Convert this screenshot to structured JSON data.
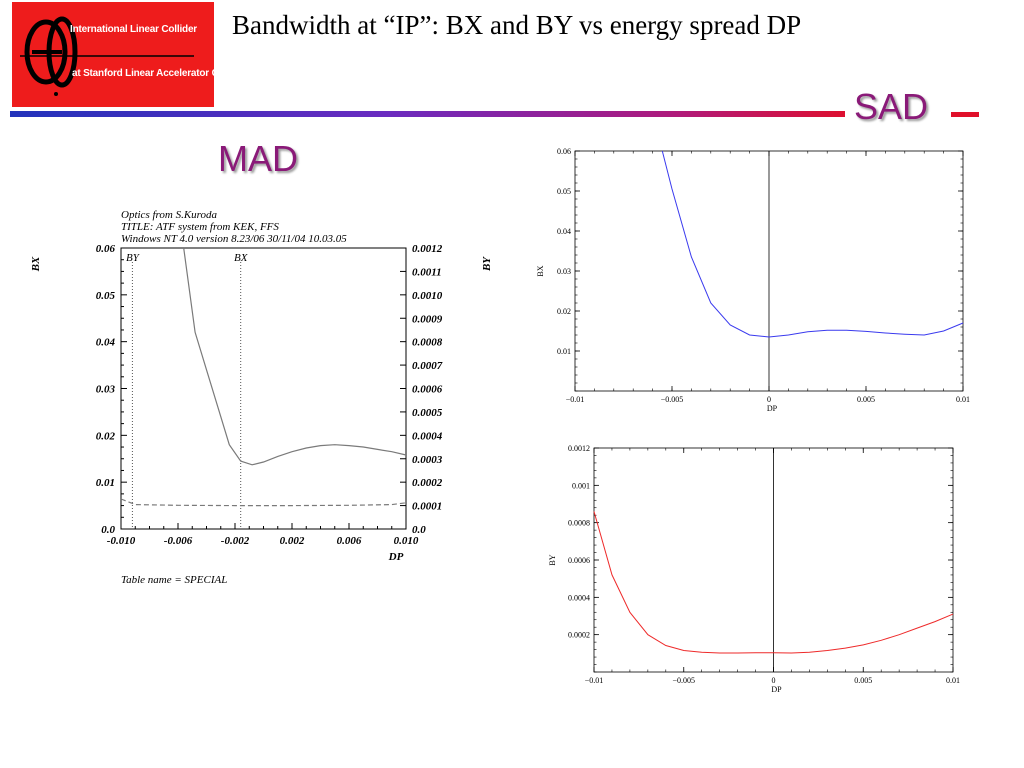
{
  "title": "Bandwidth at “IP”: BX and BY vs energy spread DP",
  "logo": {
    "line1": "International Linear Collider",
    "line2": "at Stanford Linear Accelerator Center"
  },
  "labels": {
    "mad": "MAD",
    "sad": "SAD"
  },
  "mad_notes": {
    "line1": "Optics from S.Kuroda",
    "line2": "TITLE: ATF system from KEK, FFS",
    "line3": "Windows NT 4.0 version 8.23/06    30/11/04  10.03.05",
    "table": "Table name = SPECIAL",
    "marker_by": "BY",
    "marker_bx": "BX"
  },
  "chart_data": [
    {
      "type": "line",
      "name": "MAD",
      "xlabel": "DP",
      "ylabel_left": "BX",
      "ylabel_right": "BY",
      "xlim": [
        -0.01,
        0.01
      ],
      "ylim_left": [
        0.0,
        0.06
      ],
      "ylim_right": [
        0.0,
        0.0012
      ],
      "x_ticks": [
        "-0.010",
        "-0.006",
        "-0.002",
        "0.002",
        "0.006",
        "0.010"
      ],
      "y_left_ticks": [
        "0.0",
        "0.01",
        "0.02",
        "0.03",
        "0.04",
        "0.05",
        "0.06"
      ],
      "y_right_ticks": [
        "0.0",
        "0.0001",
        "0.0002",
        "0.0003",
        "0.0004",
        "0.0005",
        "0.0006",
        "0.0007",
        "0.0008",
        "0.0009",
        "0.0010",
        "0.0011",
        "0.0012"
      ],
      "markers": [
        {
          "label": "BY",
          "x": -0.0092
        },
        {
          "label": "BX",
          "x": -0.0016
        }
      ],
      "series": [
        {
          "name": "BX",
          "axis": "left",
          "style": "solid",
          "color": "#7a7a7a",
          "x": [
            -0.0056,
            -0.0048,
            -0.004,
            -0.0032,
            -0.0024,
            -0.0016,
            -0.0008,
            0.0,
            0.001,
            0.002,
            0.003,
            0.004,
            0.005,
            0.006,
            0.007,
            0.008,
            0.009,
            0.01
          ],
          "y": [
            0.06,
            0.042,
            0.034,
            0.026,
            0.018,
            0.0145,
            0.0137,
            0.0143,
            0.0155,
            0.0165,
            0.0173,
            0.0178,
            0.018,
            0.0178,
            0.0175,
            0.017,
            0.0165,
            0.0158
          ]
        },
        {
          "name": "BY",
          "axis": "right",
          "style": "dashed",
          "color": "#7a7a7a",
          "x": [
            -0.01,
            -0.009,
            -0.006,
            -0.002,
            0.002,
            0.006,
            0.009,
            0.01
          ],
          "y": [
            0.000128,
            0.000104,
            0.000101,
            0.0001,
            0.0001,
            0.000101,
            0.000104,
            0.000112
          ]
        }
      ]
    },
    {
      "type": "line",
      "name": "SAD BX",
      "xlabel": "DP",
      "ylabel": "BX",
      "xlim": [
        -0.01,
        0.01
      ],
      "ylim": [
        0.0,
        0.06
      ],
      "x_ticks": [
        -0.01,
        -0.005,
        0,
        0.005,
        0.01
      ],
      "x_tick_labels": [
        "−0.01",
        "−0.005",
        "0",
        "0.005",
        "0.01"
      ],
      "y_ticks": [
        0.01,
        0.02,
        0.03,
        0.04,
        0.05,
        0.06
      ],
      "y_tick_labels": [
        "0.01",
        "0.02",
        "0.03",
        "0.04",
        "0.05",
        "0.06"
      ],
      "color": "#3a3aee",
      "x": [
        -0.0055,
        -0.005,
        -0.004,
        -0.003,
        -0.002,
        -0.001,
        0.0,
        0.001,
        0.002,
        0.003,
        0.004,
        0.005,
        0.006,
        0.007,
        0.008,
        0.009,
        0.01
      ],
      "y": [
        0.06,
        0.0505,
        0.0335,
        0.022,
        0.0165,
        0.014,
        0.0135,
        0.014,
        0.0148,
        0.0152,
        0.0152,
        0.0149,
        0.0145,
        0.0142,
        0.014,
        0.015,
        0.017
      ]
    },
    {
      "type": "line",
      "name": "SAD BY",
      "xlabel": "DP",
      "ylabel": "BY",
      "xlim": [
        -0.01,
        0.01
      ],
      "ylim": [
        0.0,
        0.0012
      ],
      "x_ticks": [
        -0.01,
        -0.005,
        0,
        0.005,
        0.01
      ],
      "x_tick_labels": [
        "−0.01",
        "−0.005",
        "0",
        "0.005",
        "0.01"
      ],
      "y_ticks": [
        0.0002,
        0.0004,
        0.0006,
        0.0008,
        0.001,
        0.0012
      ],
      "y_tick_labels": [
        "0.0002",
        "0.0004",
        "0.0006",
        "0.0008",
        "0.001",
        "0.0012"
      ],
      "color": "#ee2a2a",
      "x": [
        -0.01,
        -0.009,
        -0.008,
        -0.007,
        -0.006,
        -0.005,
        -0.004,
        -0.003,
        -0.002,
        -0.001,
        0.0,
        0.001,
        0.002,
        0.003,
        0.004,
        0.005,
        0.006,
        0.007,
        0.008,
        0.009,
        0.01
      ],
      "y": [
        0.00086,
        0.00052,
        0.00032,
        0.0002,
        0.000142,
        0.000115,
        0.000106,
        0.000102,
        0.000102,
        0.000103,
        0.000103,
        0.000102,
        0.000106,
        0.000115,
        0.000128,
        0.000145,
        0.00017,
        0.0002,
        0.000235,
        0.00027,
        0.00031
      ]
    }
  ]
}
